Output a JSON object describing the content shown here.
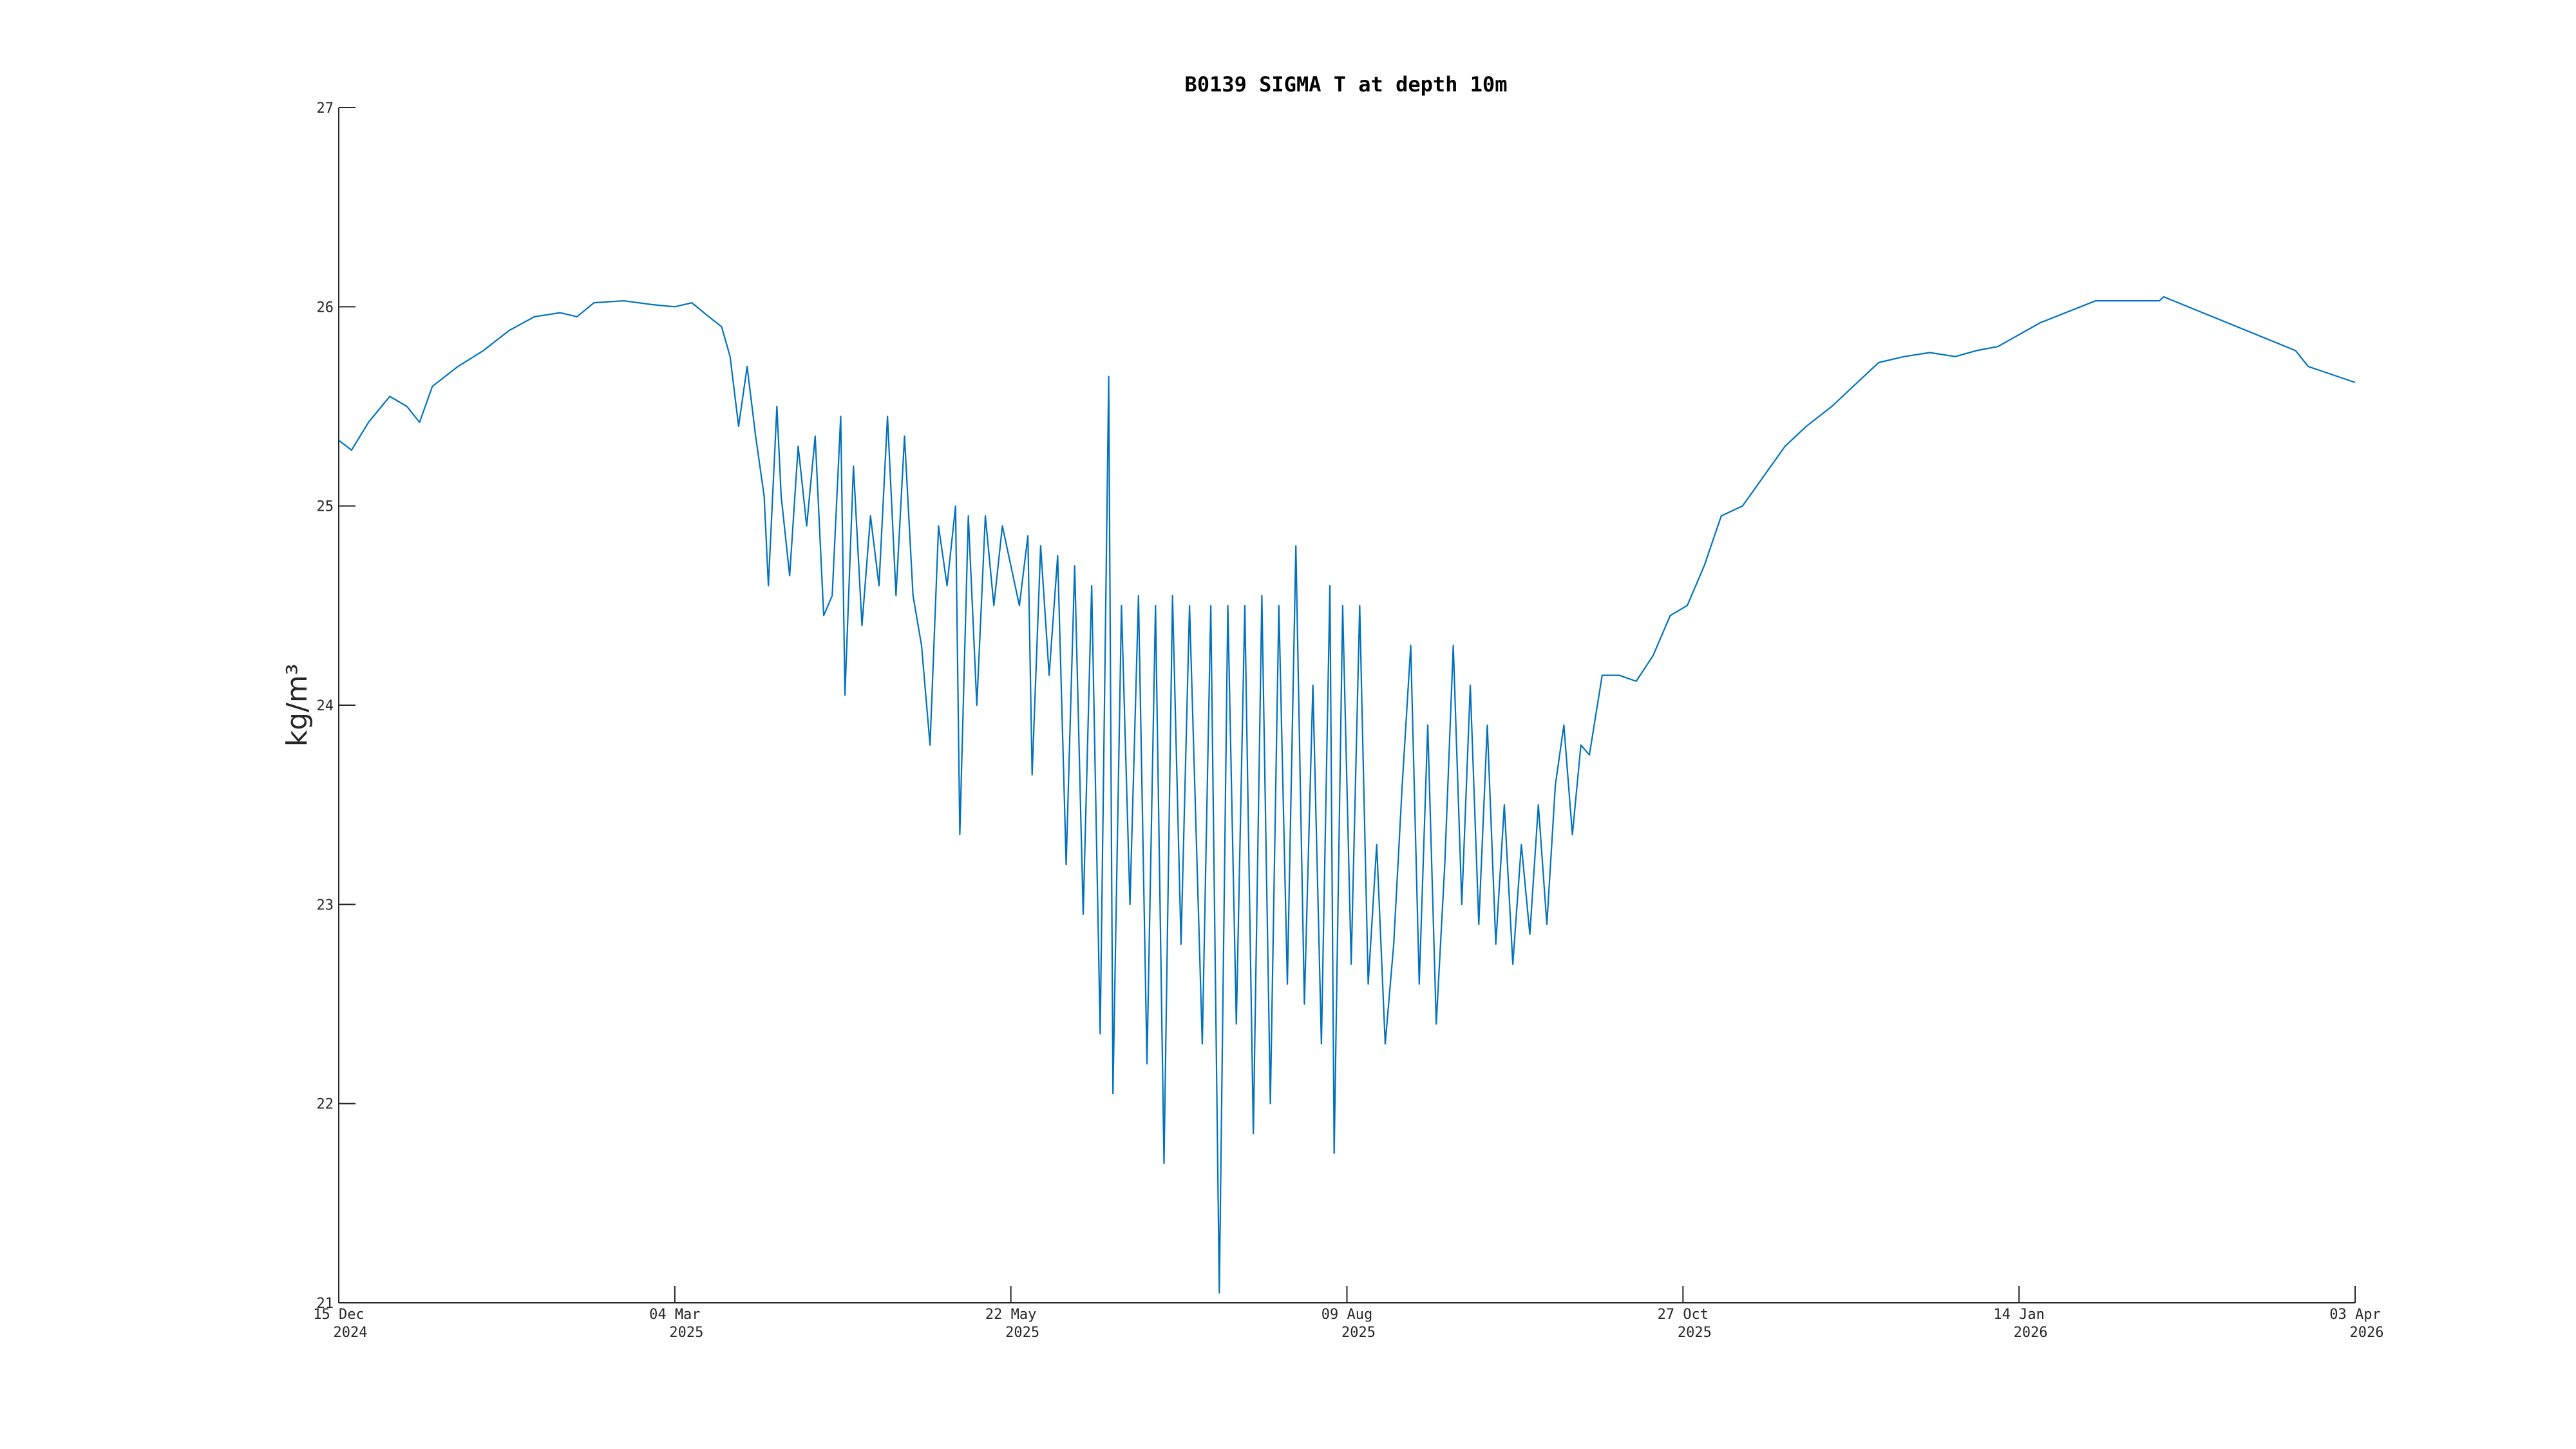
{
  "chart_data": {
    "type": "line",
    "title": "B0139 SIGMA T at depth 10m",
    "ylabel": "kg/m³",
    "color": "#0072BD",
    "xlim": [
      "2024-12-15",
      "2026-04-03"
    ],
    "xticks": [
      {
        "value": "2024-12-15",
        "label": "15 Dec 2024"
      },
      {
        "value": "2025-03-04",
        "label": "04 Mar 2025"
      },
      {
        "value": "2025-05-22",
        "label": "22 May 2025"
      },
      {
        "value": "2025-08-09",
        "label": "09 Aug 2025"
      },
      {
        "value": "2025-10-27",
        "label": "27 Oct 2025"
      },
      {
        "value": "2026-01-14",
        "label": "14 Jan 2026"
      },
      {
        "value": "2026-04-03",
        "label": "03 Apr 2026"
      }
    ],
    "ylim": [
      21,
      27
    ],
    "yticks": [
      21,
      22,
      23,
      24,
      25,
      26,
      27
    ],
    "x": [
      "2024-12-15",
      "2024-12-18",
      "2024-12-22",
      "2024-12-27",
      "2024-12-31",
      "2025-01-03",
      "2025-01-06",
      "2025-01-12",
      "2025-01-18",
      "2025-01-24",
      "2025-01-30",
      "2025-02-05",
      "2025-02-09",
      "2025-02-13",
      "2025-02-20",
      "2025-02-27",
      "2025-03-04",
      "2025-03-08",
      "2025-03-12",
      "2025-03-15",
      "2025-03-17",
      "2025-03-19",
      "2025-03-21",
      "2025-03-23",
      "2025-03-25",
      "2025-03-26",
      "2025-03-28",
      "2025-03-29",
      "2025-03-31",
      "2025-04-02",
      "2025-04-04",
      "2025-04-06",
      "2025-04-08",
      "2025-04-10",
      "2025-04-12",
      "2025-04-13",
      "2025-04-15",
      "2025-04-17",
      "2025-04-19",
      "2025-04-21",
      "2025-04-23",
      "2025-04-25",
      "2025-04-27",
      "2025-04-29",
      "2025-05-01",
      "2025-05-03",
      "2025-05-05",
      "2025-05-07",
      "2025-05-09",
      "2025-05-10",
      "2025-05-12",
      "2025-05-14",
      "2025-05-16",
      "2025-05-18",
      "2025-05-20",
      "2025-05-22",
      "2025-05-24",
      "2025-05-26",
      "2025-05-27",
      "2025-05-29",
      "2025-05-31",
      "2025-06-02",
      "2025-06-04",
      "2025-06-06",
      "2025-06-08",
      "2025-06-10",
      "2025-06-12",
      "2025-06-14",
      "2025-06-15",
      "2025-06-17",
      "2025-06-19",
      "2025-06-21",
      "2025-06-23",
      "2025-06-25",
      "2025-06-27",
      "2025-06-29",
      "2025-07-01",
      "2025-07-03",
      "2025-07-06",
      "2025-07-08",
      "2025-07-10",
      "2025-07-12",
      "2025-07-14",
      "2025-07-16",
      "2025-07-18",
      "2025-07-20",
      "2025-07-22",
      "2025-07-24",
      "2025-07-26",
      "2025-07-28",
      "2025-07-30",
      "2025-08-01",
      "2025-08-03",
      "2025-08-05",
      "2025-08-06",
      "2025-08-08",
      "2025-08-10",
      "2025-08-12",
      "2025-08-14",
      "2025-08-16",
      "2025-08-18",
      "2025-08-20",
      "2025-08-22",
      "2025-08-24",
      "2025-08-26",
      "2025-08-28",
      "2025-08-30",
      "2025-09-01",
      "2025-09-03",
      "2025-09-05",
      "2025-09-07",
      "2025-09-09",
      "2025-09-11",
      "2025-09-13",
      "2025-09-15",
      "2025-09-17",
      "2025-09-19",
      "2025-09-21",
      "2025-09-23",
      "2025-09-25",
      "2025-09-27",
      "2025-09-29",
      "2025-10-01",
      "2025-10-03",
      "2025-10-05",
      "2025-10-08",
      "2025-10-12",
      "2025-10-16",
      "2025-10-20",
      "2025-10-24",
      "2025-10-28",
      "2025-11-01",
      "2025-11-05",
      "2025-11-10",
      "2025-11-15",
      "2025-11-20",
      "2025-11-25",
      "2025-12-01",
      "2025-12-06",
      "2025-12-12",
      "2025-12-18",
      "2025-12-24",
      "2025-12-30",
      "2026-01-04",
      "2026-01-09",
      "2026-01-19",
      "2026-02-01",
      "2026-02-16",
      "2026-02-17",
      "2026-03-20",
      "2026-03-23",
      "2026-04-03"
    ],
    "values": [
      25.33,
      25.28,
      25.42,
      25.55,
      25.5,
      25.42,
      25.6,
      25.7,
      25.78,
      25.88,
      25.95,
      25.97,
      25.95,
      26.02,
      26.03,
      26.01,
      26.0,
      26.02,
      25.95,
      25.9,
      25.75,
      25.4,
      25.7,
      25.35,
      25.05,
      24.6,
      25.5,
      25.05,
      24.65,
      25.3,
      24.9,
      25.35,
      24.45,
      24.55,
      25.45,
      24.05,
      25.2,
      24.4,
      24.95,
      24.6,
      25.45,
      24.55,
      25.35,
      24.55,
      24.3,
      23.8,
      24.9,
      24.6,
      25.0,
      23.35,
      24.95,
      24.0,
      24.95,
      24.5,
      24.9,
      24.7,
      24.5,
      24.85,
      23.65,
      24.8,
      24.15,
      24.75,
      23.2,
      24.7,
      22.95,
      24.6,
      22.35,
      25.65,
      22.05,
      24.5,
      23.0,
      24.55,
      22.2,
      24.5,
      21.7,
      24.55,
      22.8,
      24.5,
      22.3,
      24.5,
      21.05,
      24.5,
      22.4,
      24.5,
      21.85,
      24.55,
      22.0,
      24.5,
      22.6,
      24.8,
      22.5,
      24.1,
      22.3,
      24.6,
      21.75,
      24.5,
      22.7,
      24.5,
      22.6,
      23.3,
      22.3,
      22.8,
      23.6,
      24.3,
      22.6,
      23.9,
      22.4,
      23.2,
      24.3,
      23.0,
      24.1,
      22.9,
      23.9,
      22.8,
      23.5,
      22.7,
      23.3,
      22.85,
      23.5,
      22.9,
      23.6,
      23.9,
      23.35,
      23.8,
      23.75,
      24.15,
      24.15,
      24.12,
      24.25,
      24.45,
      24.5,
      24.7,
      24.95,
      25.0,
      25.15,
      25.3,
      25.4,
      25.5,
      25.6,
      25.72,
      25.75,
      25.77,
      25.75,
      25.78,
      25.8,
      25.92,
      26.03,
      26.03,
      26.05,
      25.78,
      25.7,
      25.62
    ]
  }
}
